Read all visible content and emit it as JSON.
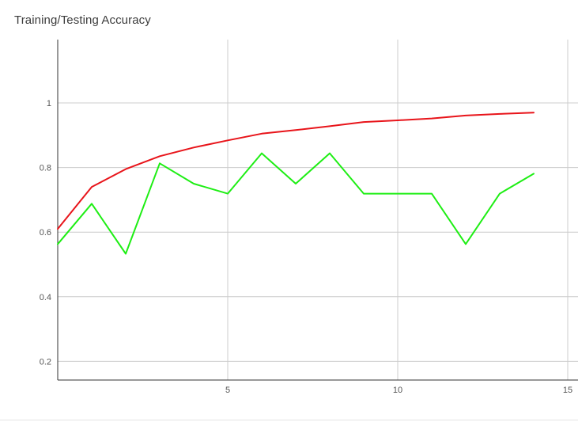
{
  "chart_data": {
    "type": "line",
    "title": "Training/Testing Accuracy",
    "xlabel": "",
    "ylabel": "",
    "xlim": [
      0,
      15.3
    ],
    "ylim": [
      0.15,
      1.18
    ],
    "xticks": [
      5,
      10,
      15
    ],
    "yticks": [
      0.2,
      0.4,
      0.6,
      0.8,
      1
    ],
    "grid": true,
    "legend": "none",
    "series": [
      {
        "color": "#e8141a",
        "x": [
          0,
          1,
          2,
          3,
          4,
          5,
          6,
          7,
          8,
          9,
          10,
          11,
          12,
          13,
          14
        ],
        "values": [
          0.61,
          0.74,
          0.795,
          0.835,
          0.862,
          0.884,
          0.905,
          0.916,
          0.928,
          0.941,
          0.946,
          0.952,
          0.961,
          0.966,
          0.97
        ]
      },
      {
        "color": "#1eee14",
        "x": [
          0,
          1,
          2,
          3,
          4,
          5,
          6,
          7,
          8,
          9,
          10,
          11,
          12,
          13,
          14
        ],
        "values": [
          0.563,
          0.688,
          0.533,
          0.813,
          0.75,
          0.719,
          0.844,
          0.75,
          0.844,
          0.719,
          0.719,
          0.719,
          0.563,
          0.719,
          0.781
        ]
      }
    ]
  }
}
